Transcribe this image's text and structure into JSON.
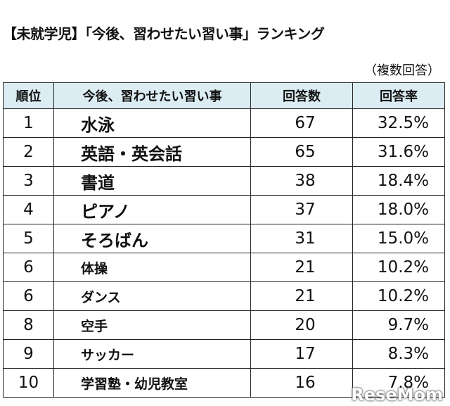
{
  "header": {
    "title": "【未就学児】「今後、習わせたい習い事」ランキング",
    "note": "（複数回答）"
  },
  "table": {
    "columns": [
      "順位",
      "今後、習わせたい習い事",
      "回答数",
      "回答率"
    ],
    "rows": [
      [
        "1",
        "水泳",
        "67",
        "32.5%"
      ],
      [
        "2",
        "英語・英会話",
        "65",
        "31.6%"
      ],
      [
        "3",
        "書道",
        "38",
        "18.4%"
      ],
      [
        "4",
        "ピアノ",
        "37",
        "18.0%"
      ],
      [
        "5",
        "そろばん",
        "31",
        "15.0%"
      ],
      [
        "6",
        "体操",
        "21",
        "10.2%"
      ],
      [
        "6",
        "ダンス",
        "21",
        "10.2%"
      ],
      [
        "8",
        "空手",
        "20",
        "9.7%"
      ],
      [
        "9",
        "サッカー",
        "17",
        "8.3%"
      ],
      [
        "10",
        "学習塾・幼児教室",
        "16",
        "7.8%"
      ]
    ]
  },
  "watermark": "ReseMom"
}
